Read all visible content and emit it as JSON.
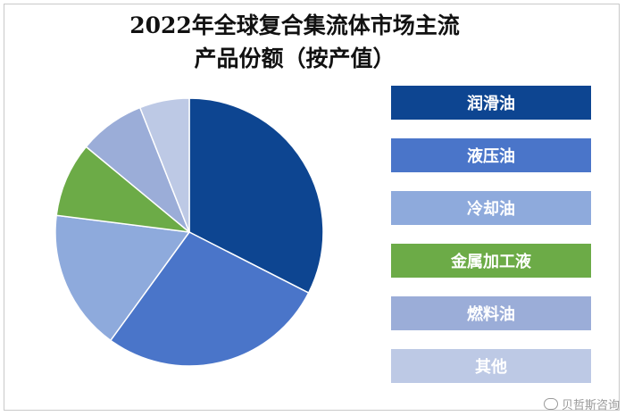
{
  "title": {
    "line1": "2022年全球复合集流体市场主流",
    "line2": "产品份额（按产值）"
  },
  "watermark": {
    "text": "贝哲斯咨询",
    "icon": "weibo-icon"
  },
  "chart_data": {
    "type": "pie",
    "unit": "%",
    "legend_position": "right",
    "start_angle_deg": 0,
    "direction": "clockwise",
    "slices": [
      {
        "label": "润滑油",
        "value": 32.5,
        "color": "#0d4591"
      },
      {
        "label": "液压油",
        "value": 27.5,
        "color": "#4a75c9"
      },
      {
        "label": "冷却油",
        "value": 17.0,
        "color": "#8eaadc"
      },
      {
        "label": "金属加工液",
        "value": 9.0,
        "color": "#6cab47"
      },
      {
        "label": "燃料油",
        "value": 8.0,
        "color": "#9badd8"
      },
      {
        "label": "其他",
        "value": 6.0,
        "color": "#bdc9e5"
      }
    ]
  }
}
